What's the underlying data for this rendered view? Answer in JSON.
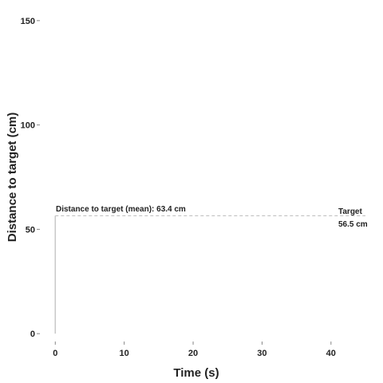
{
  "chart_data": {
    "type": "line",
    "title": "",
    "xlabel": "Time (s)",
    "ylabel": "Distance to target (cm)",
    "xlim": [
      -2,
      45
    ],
    "ylim": [
      -3,
      153
    ],
    "x_ticks": [
      0,
      10,
      20,
      30,
      40
    ],
    "y_ticks": [
      0,
      50,
      100,
      150
    ],
    "grid": false,
    "series": [
      {
        "x": [
          0,
          0
        ],
        "y": [
          0,
          56.5
        ],
        "color": "#c8c8c8"
      }
    ],
    "reference_line": {
      "y": 56.5,
      "x_range": [
        0,
        45
      ],
      "style": "dashed",
      "color": "#bbbbbb"
    },
    "annotations": {
      "mean_label": "Distance to target (mean): 63.4  cm",
      "target_line1": "Target",
      "target_line2": "56.5  cm"
    },
    "colors": {
      "axis_tick": "#888888",
      "text": "#222222"
    }
  }
}
